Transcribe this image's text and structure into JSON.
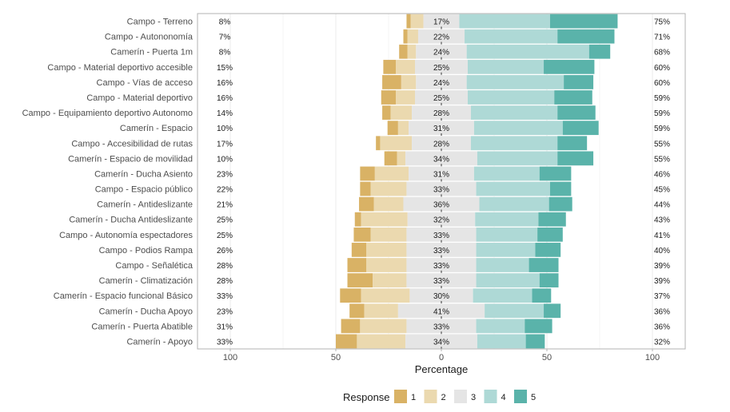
{
  "chart_data": {
    "type": "bar",
    "subtype": "diverging-stacked-likert",
    "title": "",
    "xlabel": "Percentage",
    "ylabel": "",
    "xlim": [
      -100,
      100
    ],
    "x_ticks": [
      -100,
      -50,
      0,
      50,
      100
    ],
    "x_tick_labels": [
      "100",
      "50",
      "0",
      "50",
      "100"
    ],
    "grid": true,
    "legend": {
      "title": "Response",
      "position": "bottom",
      "entries": [
        "1",
        "2",
        "3",
        "4",
        "5"
      ]
    },
    "colors": {
      "1": "#d9b265",
      "2": "#ebd9af",
      "3": "#e5e5e5",
      "4": "#aed9d6",
      "5": "#5ab3aa"
    },
    "series_names": [
      "1",
      "2",
      "3",
      "4",
      "5"
    ],
    "categories": [
      "Campo - Terreno",
      "Campo - Autononomía",
      "Camerín - Puerta 1m",
      "Campo - Material deportivo accesible",
      "Campo - Vías de acceso",
      "Campo - Material deportivo",
      "Campo - Equipamiento deportivo Autonomo",
      "Camerín - Espacio",
      "Campo - Accesibilidad de rutas",
      "Camerín - Espacio de movilidad",
      "Camerín - Ducha Asiento",
      "Campo - Espacio público",
      "Camerín - Antideslizante",
      "Camerín - Ducha Antideslizante",
      "Campo - Autonomía espectadores",
      "Campo - Podios Rampa",
      "Campo - Señalética",
      "Camerín - Climatización",
      "Camerín - Espacio funcional Básico",
      "Camerín - Ducha Apoyo",
      "Camerín - Puerta Abatible",
      "Camerín - Apoyo"
    ],
    "values": [
      [
        2,
        6,
        17,
        43,
        32
      ],
      [
        2,
        5,
        22,
        44,
        27
      ],
      [
        4,
        4,
        24,
        58,
        10
      ],
      [
        6,
        9,
        25,
        36,
        24
      ],
      [
        9,
        7,
        24,
        46,
        14
      ],
      [
        7,
        9,
        25,
        41,
        18
      ],
      [
        4,
        10,
        28,
        41,
        18
      ],
      [
        5,
        5,
        31,
        42,
        17
      ],
      [
        2,
        15,
        28,
        41,
        14
      ],
      [
        6,
        4,
        34,
        38,
        17
      ],
      [
        7,
        16,
        31,
        31,
        15
      ],
      [
        5,
        17,
        33,
        35,
        10
      ],
      [
        7,
        14,
        36,
        33,
        11
      ],
      [
        3,
        22,
        32,
        30,
        13
      ],
      [
        8,
        17,
        33,
        29,
        12
      ],
      [
        7,
        19,
        33,
        28,
        12
      ],
      [
        9,
        19,
        33,
        25,
        14
      ],
      [
        12,
        16,
        33,
        30,
        9
      ],
      [
        10,
        23,
        30,
        28,
        9
      ],
      [
        7,
        16,
        41,
        28,
        8
      ],
      [
        9,
        22,
        33,
        23,
        13
      ],
      [
        10,
        23,
        34,
        23,
        9
      ]
    ],
    "low_labels": [
      "8%",
      "7%",
      "8%",
      "15%",
      "16%",
      "16%",
      "14%",
      "10%",
      "17%",
      "10%",
      "23%",
      "22%",
      "21%",
      "25%",
      "25%",
      "26%",
      "28%",
      "28%",
      "33%",
      "23%",
      "31%",
      "33%"
    ],
    "neutral_labels": [
      "17%",
      "22%",
      "24%",
      "25%",
      "24%",
      "25%",
      "28%",
      "31%",
      "28%",
      "34%",
      "31%",
      "33%",
      "36%",
      "32%",
      "33%",
      "33%",
      "33%",
      "33%",
      "30%",
      "41%",
      "33%",
      "34%"
    ],
    "high_labels": [
      "75%",
      "71%",
      "68%",
      "60%",
      "60%",
      "59%",
      "59%",
      "59%",
      "55%",
      "55%",
      "46%",
      "45%",
      "44%",
      "43%",
      "41%",
      "40%",
      "39%",
      "39%",
      "37%",
      "36%",
      "36%",
      "32%"
    ]
  }
}
